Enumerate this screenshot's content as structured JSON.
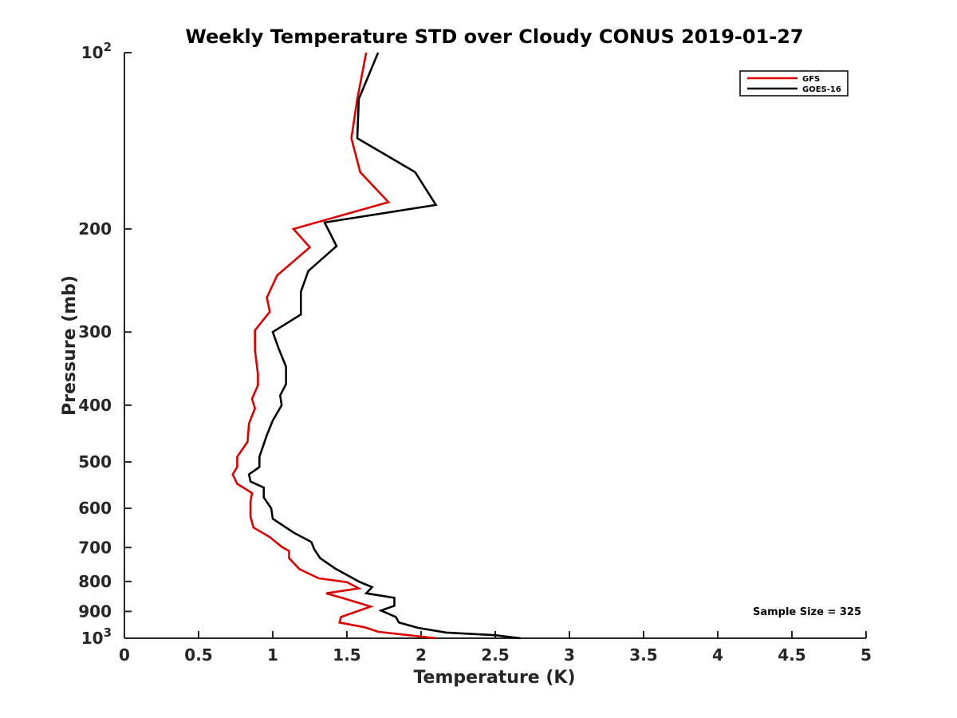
{
  "chart_data": {
    "type": "line",
    "title": "Weekly Temperature STD over Cloudy CONUS 2019-01-27",
    "xlabel": "Temperature (K)",
    "ylabel": "Pressure (mb)",
    "xlim": [
      0,
      5
    ],
    "ylim": [
      100,
      1000
    ],
    "y_scale": "log",
    "y_reversed": true,
    "xticks": [
      0,
      0.5,
      1,
      1.5,
      2,
      2.5,
      3,
      3.5,
      4,
      4.5,
      5
    ],
    "xtick_labels": [
      "0",
      "0.5",
      "1",
      "1.5",
      "2",
      "2.5",
      "3",
      "3.5",
      "4",
      "4.5",
      "5"
    ],
    "yticks": [
      100,
      200,
      300,
      400,
      500,
      600,
      700,
      800,
      900,
      1000
    ],
    "ytick_labels": [
      {
        "base": "10",
        "sup": "2"
      },
      {
        "base": "200",
        "sup": ""
      },
      {
        "base": "300",
        "sup": ""
      },
      {
        "base": "400",
        "sup": ""
      },
      {
        "base": "500",
        "sup": ""
      },
      {
        "base": "600",
        "sup": ""
      },
      {
        "base": "700",
        "sup": ""
      },
      {
        "base": "800",
        "sup": ""
      },
      {
        "base": "900",
        "sup": ""
      },
      {
        "base": "10",
        "sup": "3"
      }
    ],
    "grid": false,
    "legend_position": "top-right",
    "annotation": "Sample Size = 325",
    "series": [
      {
        "name": "GFS",
        "color": "#e00000",
        "points": [
          [
            1.63,
            100
          ],
          [
            1.57,
            120
          ],
          [
            1.53,
            140
          ],
          [
            1.59,
            160
          ],
          [
            1.78,
            180
          ],
          [
            1.14,
            200
          ],
          [
            1.25,
            215
          ],
          [
            1.03,
            240
          ],
          [
            0.96,
            262
          ],
          [
            0.98,
            277
          ],
          [
            0.88,
            298
          ],
          [
            0.88,
            322
          ],
          [
            0.9,
            354
          ],
          [
            0.9,
            370
          ],
          [
            0.86,
            390
          ],
          [
            0.88,
            405
          ],
          [
            0.84,
            430
          ],
          [
            0.83,
            462
          ],
          [
            0.76,
            490
          ],
          [
            0.76,
            510
          ],
          [
            0.73,
            525
          ],
          [
            0.76,
            545
          ],
          [
            0.86,
            565
          ],
          [
            0.85,
            585
          ],
          [
            0.85,
            620
          ],
          [
            0.87,
            647
          ],
          [
            0.98,
            672
          ],
          [
            1.06,
            698
          ],
          [
            1.11,
            710
          ],
          [
            1.11,
            730
          ],
          [
            1.18,
            762
          ],
          [
            1.31,
            790
          ],
          [
            1.5,
            802
          ],
          [
            1.58,
            822
          ],
          [
            1.36,
            838
          ],
          [
            1.48,
            855
          ],
          [
            1.66,
            883
          ],
          [
            1.46,
            920
          ],
          [
            1.45,
            940
          ],
          [
            1.62,
            958
          ],
          [
            1.71,
            975
          ],
          [
            2.1,
            1000
          ]
        ]
      },
      {
        "name": "GOES-16",
        "color": "#000000",
        "points": [
          [
            1.71,
            100
          ],
          [
            1.58,
            120
          ],
          [
            1.57,
            140
          ],
          [
            1.96,
            160
          ],
          [
            2.1,
            182
          ],
          [
            1.35,
            195
          ],
          [
            1.43,
            214
          ],
          [
            1.24,
            236
          ],
          [
            1.19,
            256
          ],
          [
            1.19,
            280
          ],
          [
            1.0,
            300
          ],
          [
            1.04,
            320
          ],
          [
            1.09,
            344
          ],
          [
            1.09,
            368
          ],
          [
            1.05,
            385
          ],
          [
            1.06,
            400
          ],
          [
            1.0,
            425
          ],
          [
            0.96,
            450
          ],
          [
            0.91,
            490
          ],
          [
            0.91,
            510
          ],
          [
            0.84,
            525
          ],
          [
            0.85,
            540
          ],
          [
            0.94,
            553
          ],
          [
            0.94,
            575
          ],
          [
            0.99,
            600
          ],
          [
            1.0,
            625
          ],
          [
            1.14,
            660
          ],
          [
            1.26,
            685
          ],
          [
            1.28,
            705
          ],
          [
            1.32,
            730
          ],
          [
            1.42,
            760
          ],
          [
            1.58,
            800
          ],
          [
            1.67,
            818
          ],
          [
            1.63,
            838
          ],
          [
            1.82,
            853
          ],
          [
            1.82,
            880
          ],
          [
            1.73,
            897
          ],
          [
            1.83,
            920
          ],
          [
            1.85,
            940
          ],
          [
            1.98,
            960
          ],
          [
            2.17,
            978
          ],
          [
            2.5,
            988
          ],
          [
            2.67,
            1000
          ]
        ]
      }
    ]
  }
}
